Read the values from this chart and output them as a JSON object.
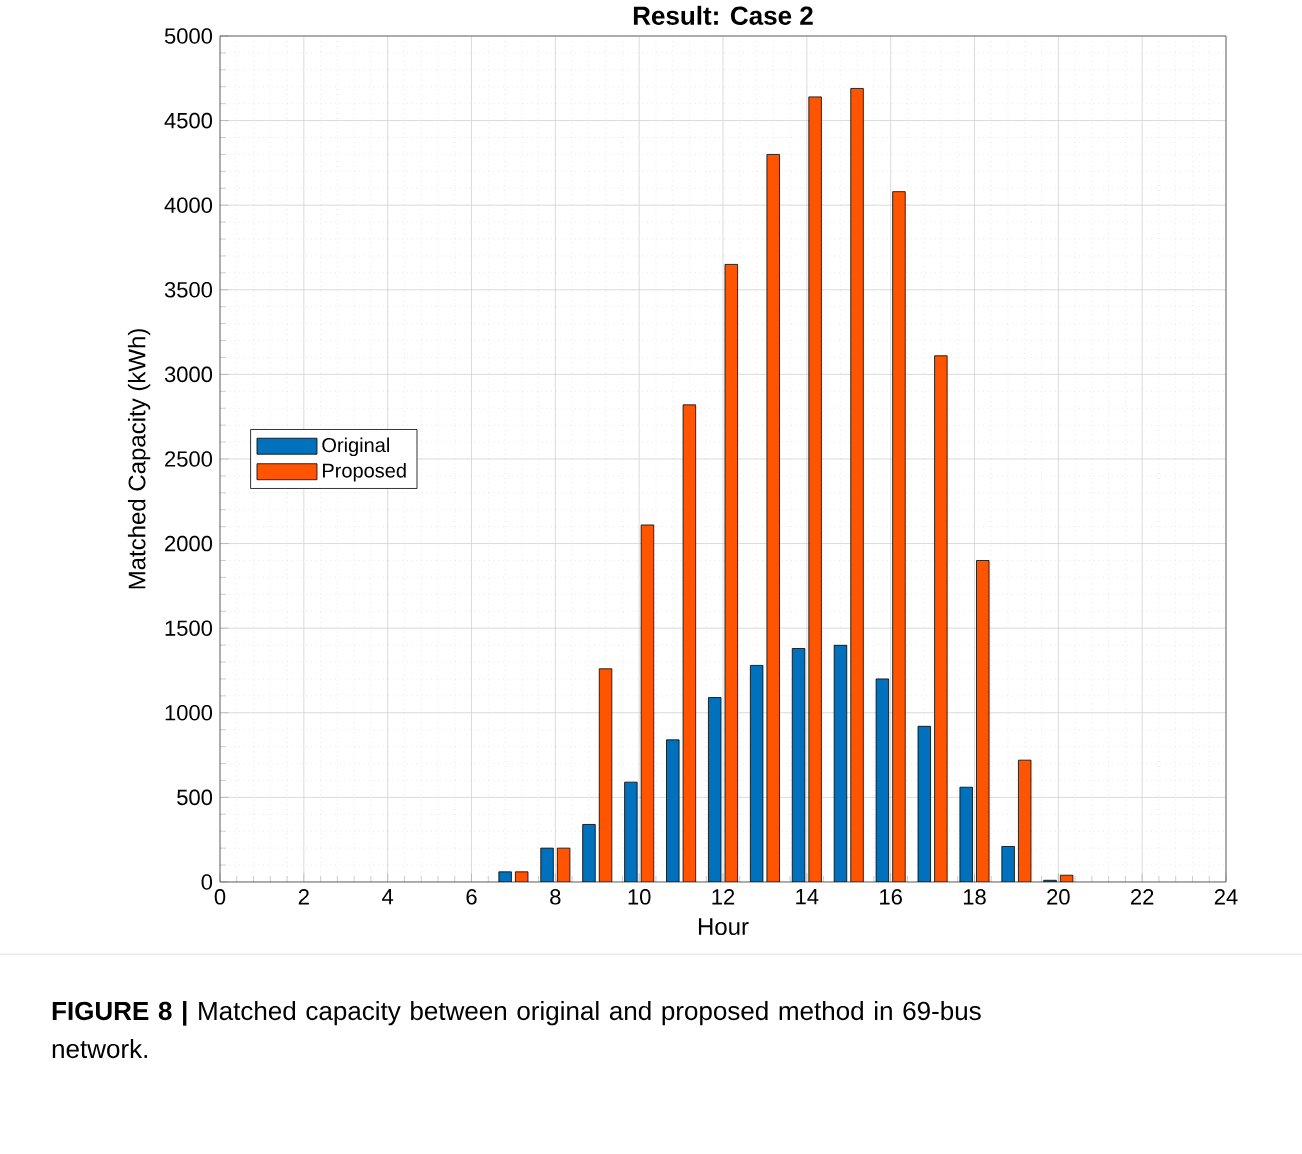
{
  "chart_data": {
    "type": "bar",
    "title": "Result: Case 2",
    "xlabel": "Hour",
    "ylabel": "Matched Capacity (kWh)",
    "x": [
      7,
      8,
      9,
      10,
      11,
      12,
      13,
      14,
      15,
      16,
      17,
      18,
      19,
      20
    ],
    "series": [
      {
        "name": "Original",
        "color": "#0072bd",
        "values": [
          60,
          200,
          340,
          590,
          840,
          1090,
          1280,
          1380,
          1400,
          1200,
          920,
          560,
          210,
          10
        ]
      },
      {
        "name": "Proposed",
        "color": "#ff5500",
        "values": [
          60,
          200,
          1260,
          2110,
          2820,
          3650,
          4300,
          4640,
          4690,
          4080,
          3110,
          1900,
          720,
          40
        ]
      }
    ],
    "xlim": [
      0,
      24
    ],
    "xticks": [
      0,
      2,
      4,
      6,
      8,
      10,
      12,
      14,
      16,
      18,
      20,
      22,
      24
    ],
    "ylim": [
      0,
      5000
    ],
    "yticks": [
      0,
      500,
      1000,
      1500,
      2000,
      2500,
      3000,
      3500,
      4000,
      4500,
      5000
    ],
    "grid": true,
    "legend": "left",
    "annotations": [
      "**FIGURE 8 |** Matched capacity between original and proposed method in 69-bus network."
    ]
  }
}
